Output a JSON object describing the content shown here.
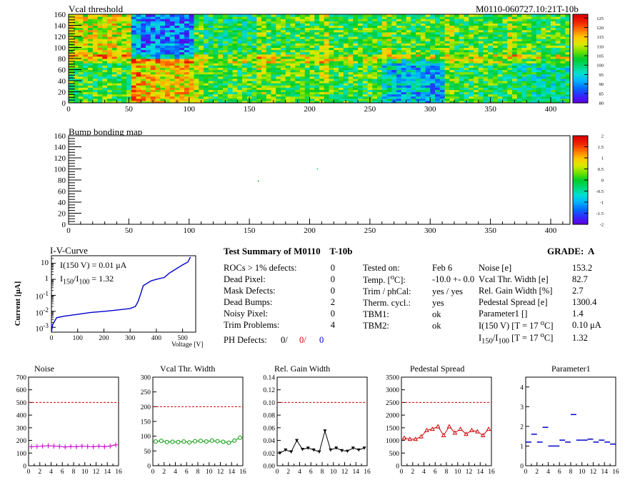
{
  "header": {
    "left_title": "Vcal threshold",
    "right_title": "M0110-060727.10:21T-10b"
  },
  "maps": {
    "vcal": {
      "title": "Vcal threshold",
      "xticks": [
        "0",
        "50",
        "100",
        "150",
        "200",
        "250",
        "300",
        "350",
        "400"
      ],
      "yticks": [
        "0",
        "20",
        "40",
        "60",
        "80",
        "100",
        "120",
        "140",
        "160"
      ],
      "zticks": [
        "80",
        "85",
        "90",
        "95",
        "100",
        "105",
        "110",
        "115",
        "120",
        "125"
      ],
      "roc_means_top": [
        110,
        88,
        100,
        103,
        103,
        103,
        103,
        103
      ],
      "roc_means_bottom": [
        103,
        112,
        103,
        104,
        103,
        92,
        102,
        98
      ]
    },
    "bump": {
      "title": "Bump bonding map",
      "xticks": [
        "0",
        "50",
        "100",
        "150",
        "200",
        "250",
        "300",
        "350",
        "400"
      ],
      "yticks": [
        "0",
        "20",
        "40",
        "60",
        "80",
        "100",
        "120",
        "140",
        "160"
      ],
      "zticks": [
        "-2",
        "-1.5",
        "-1",
        "-0.5",
        "0",
        "0.5",
        "1",
        "1.5",
        "2"
      ],
      "dots": [
        {
          "x": 157,
          "y": 79,
          "color": "#008800"
        },
        {
          "x": 206,
          "y": 101,
          "color": "#00cc44"
        }
      ]
    }
  },
  "iv": {
    "title": "I-V-Curve",
    "ylabel": "Current [μA]",
    "xlabel": "Voltage [V]",
    "annotation1": "I(150 V) = 0.01 μA",
    "annotation2_html": "I<sub>150</sub>/I<sub>100</sub> =  1.32",
    "xticks": [
      "0",
      "100",
      "200",
      "300",
      "400",
      "500"
    ],
    "yticks": [
      "10<sup>-3</sup>",
      "10<sup>-2</sup>",
      "10<sup>-1</sup>",
      "1",
      "10"
    ]
  },
  "summary": {
    "title": "Test Summary of M0110    T-10b",
    "grade": "GRADE:  A",
    "col1": [
      {
        "label": "ROCs > 1% defects:",
        "value": "0"
      },
      {
        "label": "Dead Pixel:",
        "value": "0"
      },
      {
        "label": "Mask Defects:",
        "value": "0"
      },
      {
        "label": "Dead Bumps:",
        "value": "2"
      },
      {
        "label": "Noisy Pixel:",
        "value": "0"
      },
      {
        "label": "Trim Problems:",
        "value": "4"
      }
    ],
    "ph_label": "PH Defects:",
    "ph_v1": "0/",
    "ph_v2": "0/",
    "ph_v3": "0",
    "col2": [
      {
        "label": "Tested on:",
        "value": "Feb 6"
      },
      {
        "label": "Temp. [<sup>o</sup>C]:",
        "value": "-10.0 +- 0.0"
      },
      {
        "label": "Trim / phCal:",
        "value": "yes / yes"
      },
      {
        "label": "Therm. cycl.:",
        "value": "yes"
      },
      {
        "label": "TBM1:",
        "value": "ok"
      },
      {
        "label": "TBM2:",
        "value": "ok"
      }
    ],
    "col3": [
      {
        "label": "Noise [e]",
        "value": "153.2"
      },
      {
        "label": "Vcal Thr. Width [e]",
        "value": "82.7"
      },
      {
        "label": "Rel. Gain Width [%]",
        "value": "2.7"
      },
      {
        "label": "Pedestal Spread [e]",
        "value": "1300.4"
      },
      {
        "label": "Parameter1 []",
        "value": "1.4"
      },
      {
        "label": "I(150 V) [T = 17 <sup>o</sup>C]",
        "value": "0.10 μA"
      },
      {
        "label": "I<sub>150</sub>/I<sub>100</sub>  [T = 17 <sup>o</sup>C]",
        "value": "1.32"
      }
    ]
  },
  "chart_data": [
    {
      "type": "heatmap",
      "title": "Vcal threshold",
      "xlim": [
        0,
        416
      ],
      "ylim": [
        0,
        160
      ],
      "zlim": [
        80,
        125
      ]
    },
    {
      "type": "heatmap",
      "title": "Bump bonding map",
      "xlim": [
        0,
        416
      ],
      "ylim": [
        0,
        160
      ],
      "zlim": [
        -2,
        2
      ]
    },
    {
      "type": "line",
      "title": "I-V-Curve",
      "xlabel": "Voltage [V]",
      "ylabel": "Current [μA]",
      "yscale": "log",
      "x": [
        0,
        5,
        20,
        50,
        100,
        150,
        200,
        250,
        300,
        320,
        330,
        340,
        350,
        380,
        400,
        430,
        450,
        480,
        500,
        520,
        530
      ],
      "y": [
        0.0005,
        0.0015,
        0.004,
        0.005,
        0.0065,
        0.0085,
        0.01,
        0.012,
        0.015,
        0.02,
        0.04,
        0.12,
        0.4,
        0.8,
        1.0,
        1.3,
        2.5,
        5,
        8,
        12,
        25
      ]
    },
    {
      "type": "scatter",
      "title": "Noise",
      "xlim": [
        0,
        16
      ],
      "ylim": [
        0,
        700
      ],
      "threshold": 500,
      "color": "#cc00cc",
      "marker": "cross",
      "x": [
        0,
        1,
        2,
        3,
        4,
        5,
        6,
        7,
        8,
        9,
        10,
        11,
        12,
        13,
        14,
        15
      ],
      "values": [
        150,
        152,
        155,
        158,
        155,
        153,
        148,
        152,
        150,
        155,
        152,
        150,
        155,
        150,
        155,
        165
      ]
    },
    {
      "type": "scatter",
      "title": "Vcal Thr. Width",
      "xlim": [
        0,
        16
      ],
      "ylim": [
        0,
        300
      ],
      "threshold": 200,
      "color": "#009900",
      "marker": "circle",
      "x": [
        0,
        1,
        2,
        3,
        4,
        5,
        6,
        7,
        8,
        9,
        10,
        11,
        12,
        13,
        14,
        15
      ],
      "values": [
        82,
        84,
        80,
        81,
        80,
        82,
        79,
        83,
        84,
        82,
        85,
        83,
        81,
        78,
        85,
        95
      ]
    },
    {
      "type": "scatter",
      "title": "Rel. Gain Width",
      "xlim": [
        0,
        16
      ],
      "ylim": [
        0,
        0.14
      ],
      "threshold": 0.1,
      "color": "#000000",
      "marker": "triangle-down",
      "x": [
        0,
        1,
        2,
        3,
        4,
        5,
        6,
        7,
        8,
        9,
        10,
        11,
        12,
        13,
        14,
        15
      ],
      "values": [
        0.02,
        0.025,
        0.022,
        0.04,
        0.026,
        0.028,
        0.025,
        0.022,
        0.055,
        0.025,
        0.028,
        0.024,
        0.023,
        0.028,
        0.025,
        0.028
      ]
    },
    {
      "type": "scatter",
      "title": "Pedestal Spread",
      "xlim": [
        0,
        16
      ],
      "ylim": [
        0,
        3500
      ],
      "threshold": 2500,
      "color": "#cc0000",
      "marker": "triangle",
      "x": [
        0,
        1,
        2,
        3,
        4,
        5,
        6,
        7,
        8,
        9,
        10,
        11,
        12,
        13,
        14,
        15
      ],
      "values": [
        1100,
        1050,
        1050,
        1150,
        1400,
        1450,
        1550,
        1200,
        1550,
        1300,
        1450,
        1250,
        1400,
        1350,
        1200,
        1450
      ]
    },
    {
      "type": "scatter",
      "title": "Parameter1",
      "xlim": [
        0,
        16
      ],
      "ylim": [
        0,
        4.5
      ],
      "color": "#0000cc",
      "marker": "hbar",
      "x": [
        0,
        1,
        2,
        3,
        4,
        5,
        6,
        7,
        8,
        9,
        10,
        11,
        12,
        13,
        14,
        15
      ],
      "values": [
        1.2,
        1.6,
        1.2,
        1.95,
        1.0,
        1.0,
        1.3,
        1.2,
        2.6,
        1.3,
        1.3,
        1.35,
        1.2,
        1.3,
        1.2,
        1.1
      ]
    }
  ]
}
